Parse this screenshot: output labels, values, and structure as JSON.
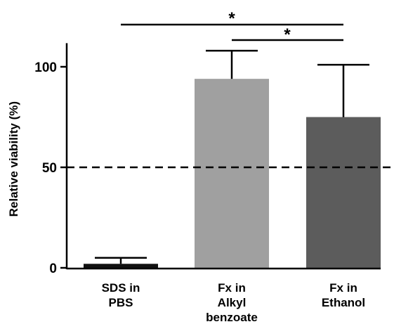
{
  "chart_data": {
    "type": "bar",
    "title": "",
    "xlabel": "",
    "ylabel": "Relative viability (%)",
    "ylim": [
      0,
      110
    ],
    "yticks": [
      0,
      50,
      100
    ],
    "categories": [
      {
        "lines": [
          "SDS in",
          "PBS"
        ]
      },
      {
        "lines": [
          "Fx in",
          "Alkyl",
          "benzoate"
        ]
      },
      {
        "lines": [
          "Fx in",
          "Ethanol"
        ]
      }
    ],
    "values": [
      2,
      94,
      75
    ],
    "errors": [
      3,
      14,
      26
    ],
    "bar_colors": [
      "#111111",
      "#a0a0a0",
      "#5c5c5c"
    ],
    "reference_line": {
      "value": 50,
      "style": "dashed"
    },
    "significance": [
      {
        "from": 0,
        "to": 2,
        "label": "*"
      },
      {
        "from": 1,
        "to": 2,
        "label": "*"
      }
    ],
    "grid": false,
    "legend": "none"
  }
}
